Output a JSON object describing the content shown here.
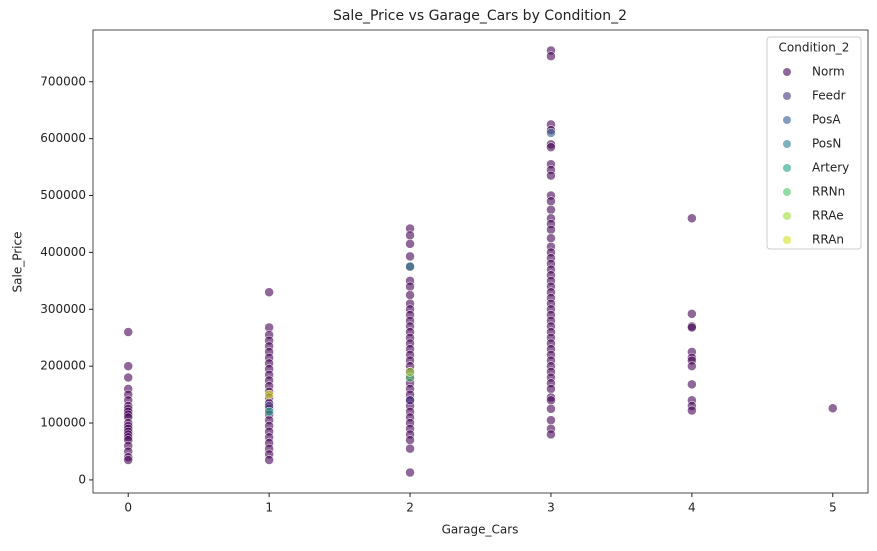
{
  "chart_data": {
    "type": "scatter",
    "title": "Sale_Price vs Garage_Cars by Condition_2",
    "xlabel": "Garage_Cars",
    "ylabel": "Sale_Price",
    "legend_title": "Condition_2",
    "legend_position": "upper right",
    "xlim": [
      -0.25,
      5.25
    ],
    "xticks": [
      0,
      1,
      2,
      3,
      4,
      5
    ],
    "ylim": [
      -23000,
      791000
    ],
    "yticks": [
      0,
      100000,
      200000,
      300000,
      400000,
      500000,
      600000,
      700000
    ],
    "series": [
      {
        "name": "Norm",
        "color": "#440154",
        "x": [
          0,
          0,
          0,
          0,
          0,
          0,
          0,
          0,
          0,
          0,
          0,
          0,
          0,
          0,
          0,
          0,
          0,
          0,
          0,
          0,
          0,
          0,
          1,
          1,
          1,
          1,
          1,
          1,
          1,
          1,
          1,
          1,
          1,
          1,
          1,
          1,
          1,
          1,
          1,
          1,
          1,
          1,
          1,
          1,
          1,
          1,
          1,
          2,
          2,
          2,
          2,
          2,
          2,
          2,
          2,
          2,
          2,
          2,
          2,
          2,
          2,
          2,
          2,
          2,
          2,
          2,
          2,
          2,
          2,
          2,
          2,
          2,
          2,
          2,
          2,
          2,
          2,
          2,
          2,
          2,
          2,
          2,
          3,
          3,
          3,
          3,
          3,
          3,
          3,
          3,
          3,
          3,
          3,
          3,
          3,
          3,
          3,
          3,
          3,
          3,
          3,
          3,
          3,
          3,
          3,
          3,
          3,
          3,
          3,
          3,
          3,
          3,
          3,
          3,
          3,
          3,
          3,
          3,
          3,
          3,
          3,
          3,
          3,
          3,
          3,
          3,
          3,
          3,
          3,
          3,
          4,
          4,
          4,
          4,
          4,
          4,
          4,
          4,
          4,
          4,
          4,
          4,
          5
        ],
        "values": [
          260000,
          200000,
          180000,
          160000,
          150000,
          140000,
          130000,
          125000,
          120000,
          115000,
          110000,
          100000,
          95000,
          90000,
          85000,
          80000,
          75000,
          70000,
          60000,
          50000,
          40000,
          35000,
          330000,
          268000,
          255000,
          245000,
          235000,
          225000,
          215000,
          205000,
          195000,
          185000,
          175000,
          165000,
          155000,
          145000,
          135000,
          125000,
          115000,
          105000,
          95000,
          85000,
          75000,
          65000,
          55000,
          45000,
          35000,
          442000,
          430000,
          415000,
          393000,
          375000,
          350000,
          340000,
          325000,
          310000,
          300000,
          290000,
          280000,
          270000,
          260000,
          250000,
          240000,
          230000,
          220000,
          210000,
          200000,
          190000,
          180000,
          170000,
          160000,
          150000,
          140000,
          130000,
          120000,
          110000,
          100000,
          90000,
          80000,
          70000,
          55000,
          13000,
          755000,
          745000,
          625000,
          615000,
          590000,
          585000,
          555000,
          545000,
          535000,
          500000,
          490000,
          475000,
          460000,
          450000,
          440000,
          425000,
          410000,
          400000,
          390000,
          380000,
          370000,
          360000,
          350000,
          340000,
          330000,
          320000,
          310000,
          300000,
          290000,
          280000,
          270000,
          260000,
          250000,
          240000,
          230000,
          220000,
          210000,
          200000,
          190000,
          180000,
          170000,
          160000,
          145000,
          140000,
          125000,
          105000,
          90000,
          80000,
          460000,
          292000,
          270000,
          268000,
          225000,
          215000,
          210000,
          200000,
          168000,
          140000,
          130000,
          122000,
          126000
        ]
      },
      {
        "name": "Feedr",
        "color": "#46327e",
        "x": [
          1,
          2
        ],
        "values": [
          130000,
          140000
        ]
      },
      {
        "name": "PosA",
        "color": "#365c8d",
        "x": [
          3
        ],
        "values": [
          610000
        ]
      },
      {
        "name": "PosN",
        "color": "#277f8e",
        "x": [
          2
        ],
        "values": [
          375000
        ]
      },
      {
        "name": "Artery",
        "color": "#1fa187",
        "x": [
          1
        ],
        "values": [
          120000
        ]
      },
      {
        "name": "RRNn",
        "color": "#4ac16d",
        "x": [
          2
        ],
        "values": [
          180000
        ]
      },
      {
        "name": "RRAe",
        "color": "#a0da39",
        "x": [
          2
        ],
        "values": [
          190000
        ]
      },
      {
        "name": "RRAn",
        "color": "#d0e11c",
        "x": [
          1
        ],
        "values": [
          150000
        ]
      }
    ]
  }
}
